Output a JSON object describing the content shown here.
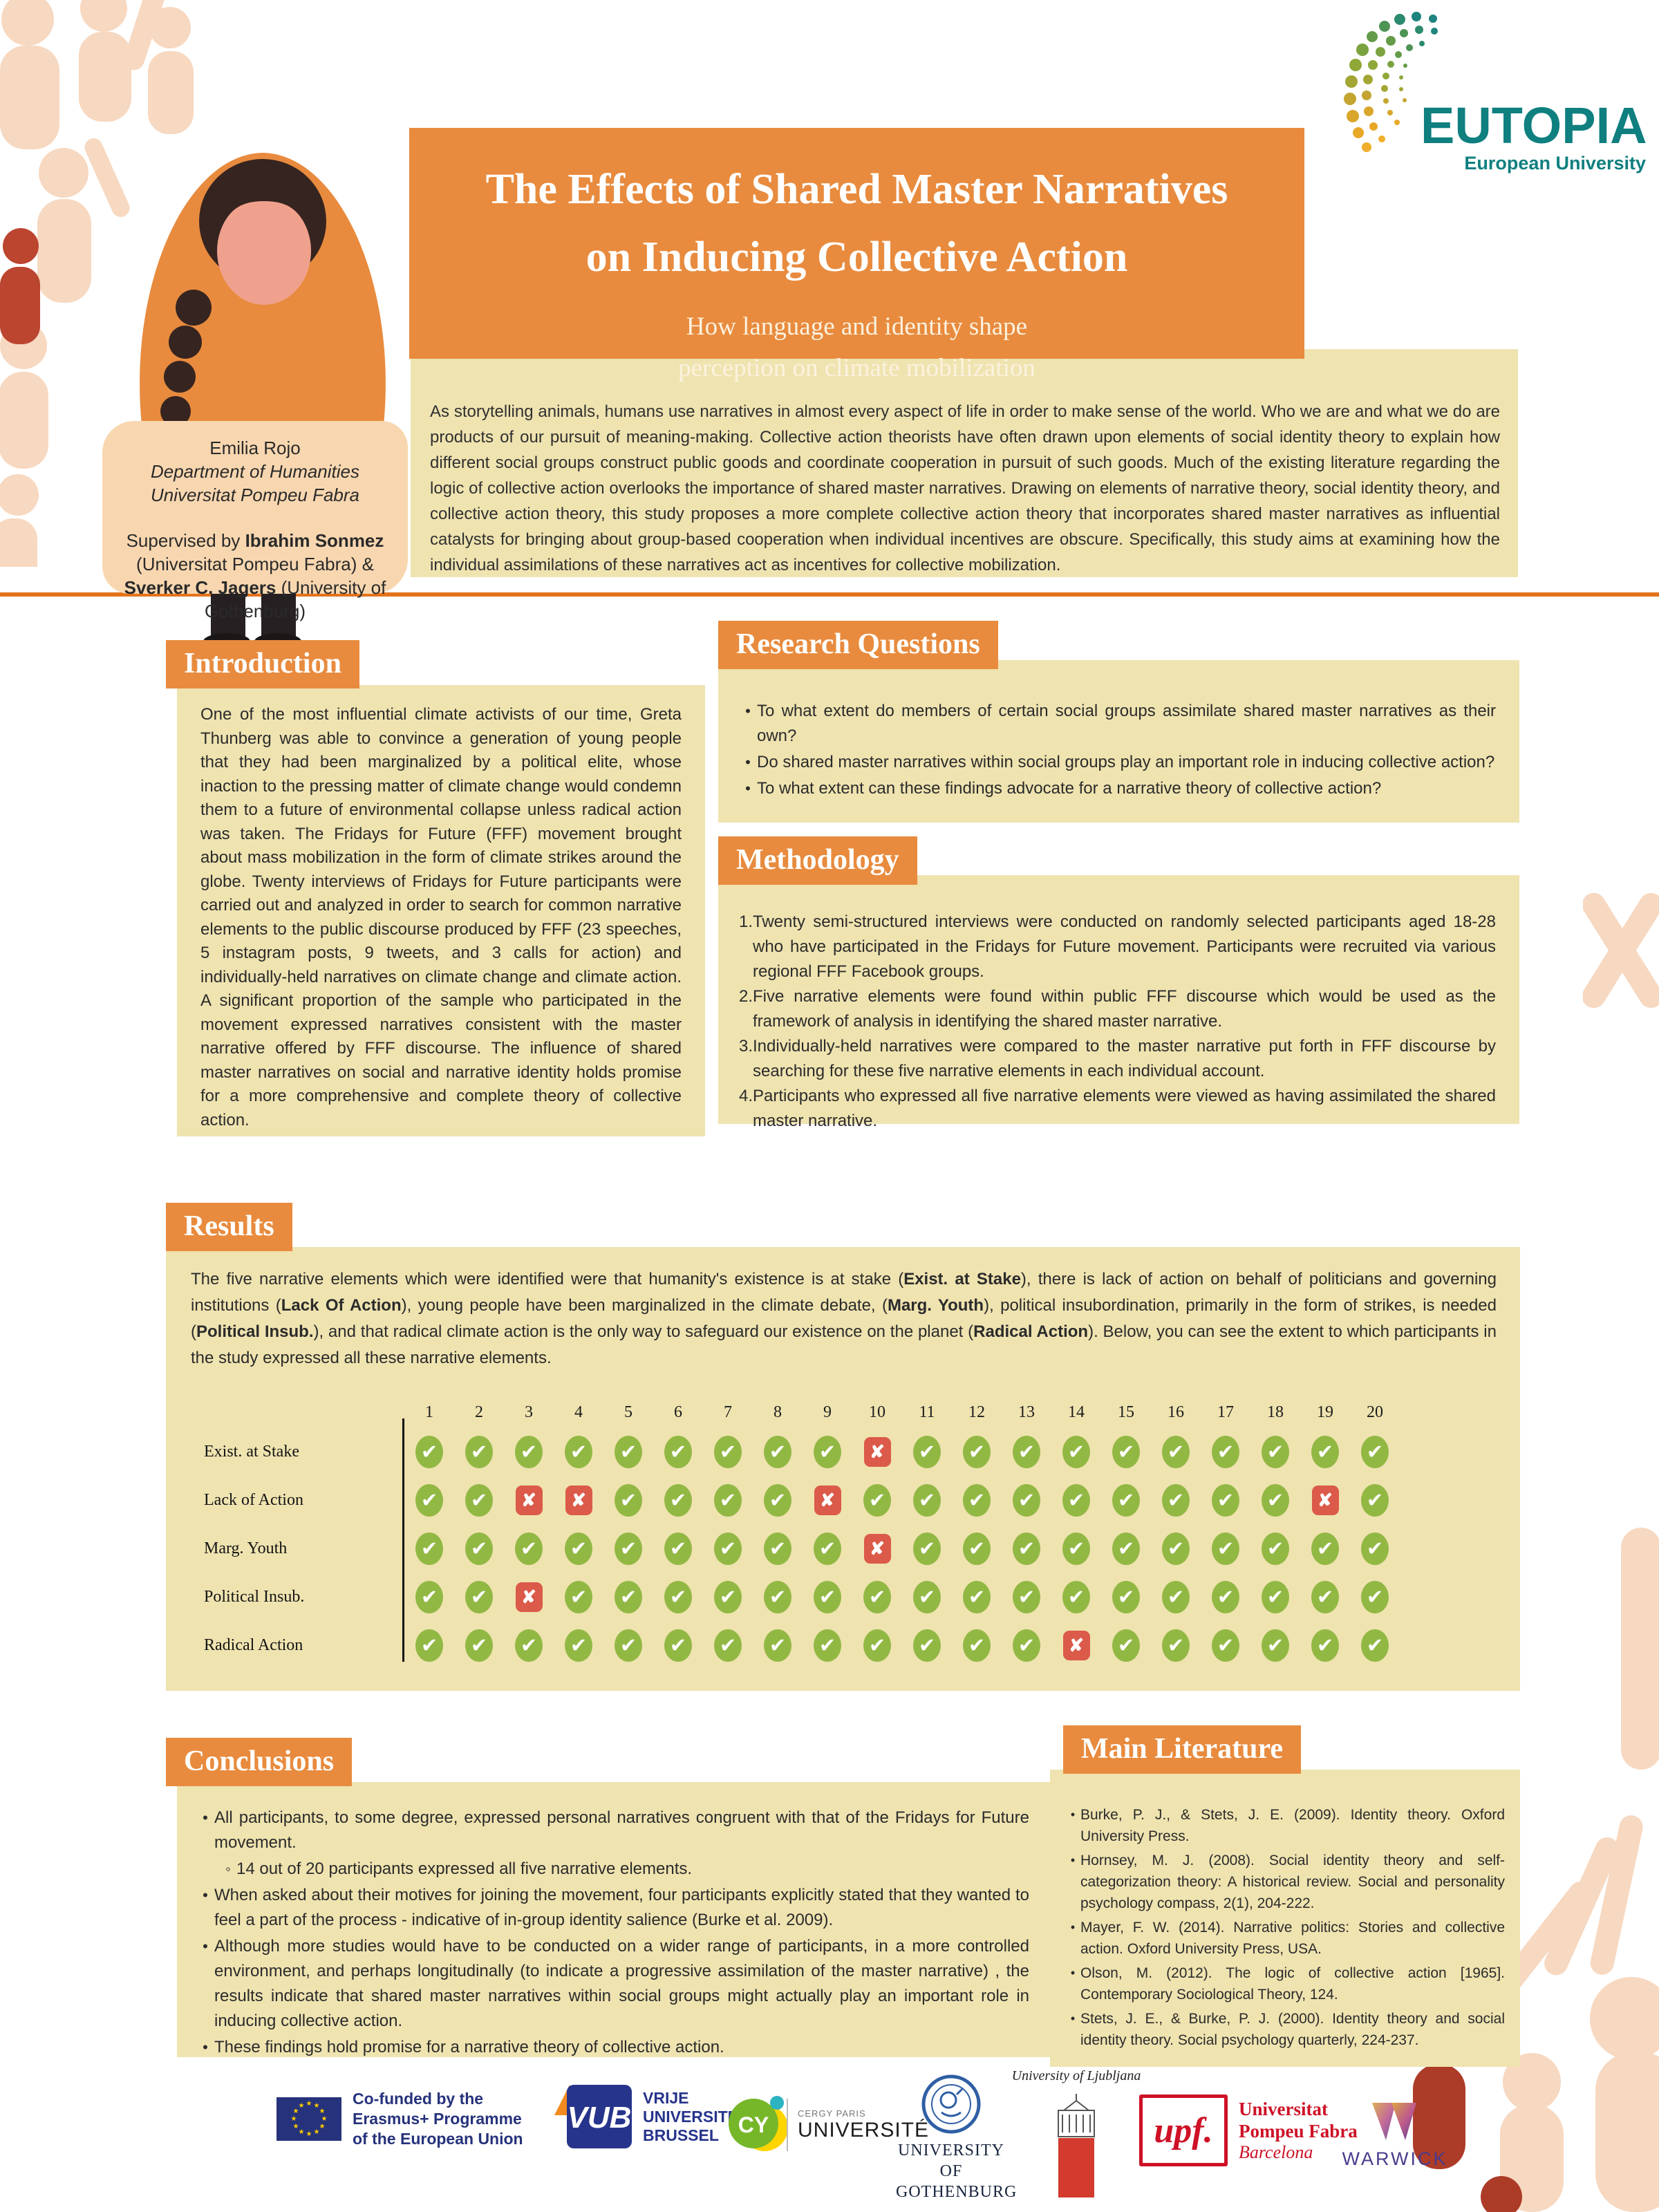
{
  "poster": {
    "title_line1": "The Effects of Shared Master Narratives",
    "title_line2": "on Inducing Collective Action",
    "subtitle_line1": "How language and identity shape",
    "subtitle_line2": "perception on climate mobilization",
    "abstract": "As storytelling animals, humans use narratives in almost every aspect of life in order to make sense of the world. Who we are and what we do are products of our pursuit of meaning-making. Collective action theorists have often drawn upon elements of social identity theory to explain how different social groups construct public goods and coordinate cooperation in pursuit of such goods. Much of the existing literature regarding the logic of collective action overlooks the importance of shared master narratives. Drawing on elements of narrative theory, social identity theory, and collective action theory, this study proposes a more complete collective action theory that incorporates shared master narratives as influential catalysts for bringing about group-based cooperation when individual incentives are obscure. Specifically, this study aims at examining how the individual assimilations of these narratives act as incentives for collective mobilization."
  },
  "eutopia": {
    "name": "EUTOPIA",
    "tagline": "European University"
  },
  "author_card": {
    "name": "Emilia Rojo",
    "dept": "Department of Humanities",
    "university": "Universitat Pompeu Fabra",
    "supervised_prefix": "Supervised by ",
    "supervisor1": "Ibrahim Sonmez",
    "supervisor1_affil": " (Universitat Pompeu Fabra) & ",
    "supervisor2": "Sverker C. Jagers",
    "supervisor2_affil": " (University of Gothenburg)"
  },
  "sections": {
    "introduction": {
      "title": "Introduction",
      "body": "One of the most influential climate activists of our time, Greta Thunberg was able to convince a generation of young people that they had been marginalized by a political elite, whose inaction to the pressing matter of climate change would condemn them to a future of environmental collapse unless radical action was taken. The Fridays for Future (FFF) movement brought about mass mobilization in the form of climate strikes around the globe. Twenty interviews of Fridays for Future participants were carried out and analyzed in order to search for common narrative elements to the public discourse produced by FFF (23 speeches, 5 instagram posts, 9 tweets, and 3 calls for action) and individually-held narratives on climate change and climate action. A significant proportion of the sample who participated in the movement expressed narratives consistent with the master narrative offered by FFF discourse. The influence of shared master narratives on social and narrative identity holds promise for a more comprehensive and complete theory of collective action."
    },
    "research_questions": {
      "title": "Research Questions",
      "bullets": [
        "To what extent do members of certain social groups assimilate shared master narratives as their own?",
        "Do shared master narratives within social groups play an important role in inducing collective action?",
        "To what extent can these findings advocate for a narrative theory of collective action?"
      ]
    },
    "methodology": {
      "title": "Methodology",
      "items": [
        "Twenty semi-structured interviews were conducted on randomly selected participants aged 18-28 who have participated in the Fridays for Future movement. Participants were recruited via various regional FFF Facebook groups.",
        "Five narrative elements were found within public FFF discourse which would be used as the framework of analysis in identifying the shared master narrative.",
        "Individually-held narratives were compared to the master narrative put forth in FFF discourse by searching for these five narrative elements in each individual account.",
        "Participants who expressed all five narrative elements were viewed as having assimilated the shared master narrative."
      ]
    },
    "results": {
      "title": "Results",
      "intro_segments": [
        {
          "text": "The five narrative elements which were identified were that humanity's existence is at stake (",
          "bold": false
        },
        {
          "text": "Exist. at Stake",
          "bold": true
        },
        {
          "text": "),  there is lack of action on behalf of politicians and governing institutions (",
          "bold": false
        },
        {
          "text": "Lack Of Action",
          "bold": true
        },
        {
          "text": "), young people have been marginalized in the climate debate, (",
          "bold": false
        },
        {
          "text": "Marg. Youth",
          "bold": true
        },
        {
          "text": "), political insubordination, primarily in the form of strikes, is needed (",
          "bold": false
        },
        {
          "text": "Political Insub.",
          "bold": true
        },
        {
          "text": "), and that radical climate action is the only way to safeguard our existence on the planet (",
          "bold": false
        },
        {
          "text": "Radical Action",
          "bold": true
        },
        {
          "text": "). Below, you can see the extent to which participants in the study expressed all these narrative elements.",
          "bold": false
        }
      ],
      "table": {
        "columns": [
          "1",
          "2",
          "3",
          "4",
          "5",
          "6",
          "7",
          "8",
          "9",
          "10",
          "11",
          "12",
          "13",
          "14",
          "15",
          "16",
          "17",
          "18",
          "19",
          "20"
        ],
        "rows": [
          {
            "label": "Exist. at Stake",
            "cells": [
              "check",
              "check",
              "check",
              "check",
              "check",
              "check",
              "check",
              "check",
              "check",
              "cross",
              "check",
              "check",
              "check",
              "check",
              "check",
              "check",
              "check",
              "check",
              "check",
              "check"
            ]
          },
          {
            "label": "Lack of Action",
            "cells": [
              "check",
              "check",
              "cross",
              "cross",
              "check",
              "check",
              "check",
              "check",
              "cross",
              "check",
              "check",
              "check",
              "check",
              "check",
              "check",
              "check",
              "check",
              "check",
              "cross",
              "check"
            ]
          },
          {
            "label": "Marg. Youth",
            "cells": [
              "check",
              "check",
              "check",
              "check",
              "check",
              "check",
              "check",
              "check",
              "check",
              "cross",
              "check",
              "check",
              "check",
              "check",
              "check",
              "check",
              "check",
              "check",
              "check",
              "check"
            ]
          },
          {
            "label": "Political Insub.",
            "cells": [
              "check",
              "check",
              "cross",
              "check",
              "check",
              "check",
              "check",
              "check",
              "check",
              "check",
              "check",
              "check",
              "check",
              "check",
              "check",
              "check",
              "check",
              "check",
              "check",
              "check"
            ]
          },
          {
            "label": "Radical Action",
            "cells": [
              "check",
              "check",
              "check",
              "check",
              "check",
              "check",
              "check",
              "check",
              "check",
              "check",
              "check",
              "check",
              "check",
              "cross",
              "check",
              "check",
              "check",
              "check",
              "check",
              "check"
            ]
          }
        ]
      }
    },
    "conclusions": {
      "title": "Conclusions",
      "bullets": [
        {
          "text": "All participants, to some degree, expressed personal narratives congruent with that of the Fridays for Future movement.",
          "sub": [
            "14 out of 20 participants expressed all five narrative elements."
          ]
        },
        {
          "text": "When asked about their motives for joining the movement, four participants explicitly stated that they wanted to feel a part of the process - indicative of in-group identity salience (Burke et al. 2009)."
        },
        {
          "text": "Although more studies would have to be conducted on a wider range of participants, in a more controlled environment, and perhaps longitudinally (to indicate a progressive assimilation of the master narrative) , the results indicate that shared master narratives within social groups might actually play an important role in inducing collective action."
        },
        {
          "text": "These findings hold promise for a narrative theory of collective action."
        }
      ]
    },
    "literature": {
      "title": "Main Literature",
      "refs": [
        "Burke, P. J., & Stets, J. E. (2009). Identity theory. Oxford University Press.",
        "Hornsey, M. J. (2008). Social identity theory and self-categorization theory: A historical review. Social and personality psychology compass, 2(1), 204-222.",
        "Mayer, F. W. (2014). Narrative politics: Stories and collective action. Oxford University Press, USA.",
        "Olson, M. (2012). The logic of collective action [1965]. Contemporary Sociological Theory, 124.",
        "Stets, J. E., & Burke, P. J. (2000). Identity theory and social identity theory. Social psychology quarterly, 224-237."
      ]
    }
  },
  "footer": {
    "eu": {
      "text": "Co-funded by the\nErasmus+ Programme\nof the European Union"
    },
    "vub": {
      "abbr": "VUB",
      "text": "VRIJE\nUNIVERSITEIT\nBRUSSEL"
    },
    "cy": {
      "abbr": "CY",
      "small": "CERGY PARIS",
      "name": "UNIVERSITÉ"
    },
    "gothenburg": {
      "text": "UNIVERSITY OF\nGOTHENBURG"
    },
    "ljubljana": {
      "name": "University of Ljubljana"
    },
    "upf": {
      "abbr": "upf.",
      "line1": "Universitat",
      "line2": "Pompeu Fabra",
      "line3": "Barcelona"
    },
    "warwick": {
      "name": "WARWICK"
    }
  },
  "colors": {
    "accent_orange": "#E88B3E",
    "divider_orange": "#E4731C",
    "panel_cream": "#EFE3B0",
    "card_peach": "#F8D7B0",
    "check_green": "#92B844",
    "cross_red": "#DB5A49",
    "eutopia_teal": "#0F7F80"
  }
}
